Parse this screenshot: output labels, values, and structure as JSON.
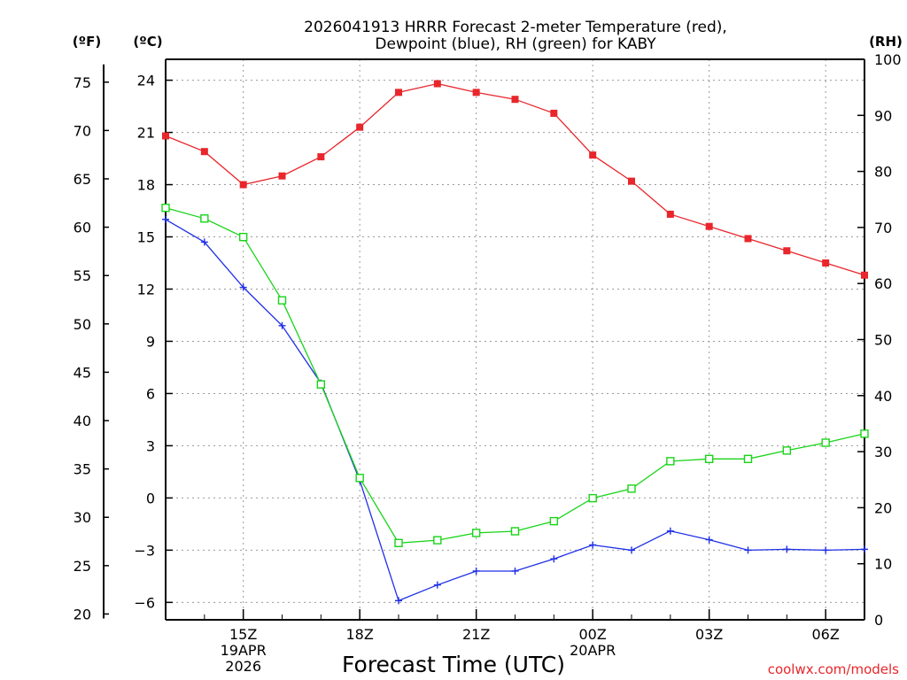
{
  "chart_data": {
    "type": "line",
    "title_line1": "2026041913 HRRR Forecast 2-meter Temperature (red),",
    "title_line2": "Dewpoint (blue), RH (green) for KABY",
    "xlabel": "Forecast Time (UTC)",
    "watermark": "coolwx.com/models",
    "x_hours": [
      0,
      1,
      2,
      3,
      4,
      5,
      6,
      7,
      8,
      9,
      10,
      11,
      12,
      13,
      14,
      15,
      16,
      17,
      18
    ],
    "xlim": [
      0,
      18
    ],
    "x_ticks": [
      {
        "hour": 2,
        "lines": [
          "15Z",
          "19APR",
          "2026"
        ]
      },
      {
        "hour": 5,
        "lines": [
          "18Z"
        ]
      },
      {
        "hour": 8,
        "lines": [
          "21Z"
        ]
      },
      {
        "hour": 11,
        "lines": [
          "00Z",
          "20APR"
        ]
      },
      {
        "hour": 14,
        "lines": [
          "03Z"
        ]
      },
      {
        "hour": 17,
        "lines": [
          "06Z"
        ]
      }
    ],
    "axis_f": {
      "unit": "(ºF)",
      "ticks": [
        20,
        25,
        30,
        35,
        40,
        45,
        50,
        55,
        60,
        65,
        70,
        75
      ]
    },
    "axis_c": {
      "unit": "(ºC)",
      "ylim": [
        -7,
        25.2
      ],
      "ticks": [
        "24",
        "21",
        "18",
        "15",
        "12",
        "9",
        "6",
        "3",
        "0",
        "−3",
        "−6"
      ],
      "tick_values": [
        24,
        21,
        18,
        15,
        12,
        9,
        6,
        3,
        0,
        -3,
        -6
      ]
    },
    "axis_rh": {
      "unit": "(RH)",
      "ylim": [
        0,
        100
      ],
      "ticks": [
        0,
        10,
        20,
        30,
        40,
        50,
        60,
        70,
        80,
        90,
        100
      ]
    },
    "series": [
      {
        "name": "Temperature",
        "unit": "C",
        "color": "#e8262b",
        "marker": "filled-square",
        "values": [
          20.8,
          19.9,
          18.0,
          18.5,
          19.6,
          21.3,
          23.3,
          23.8,
          23.3,
          22.9,
          22.1,
          19.7,
          18.2,
          16.3,
          15.6,
          14.9,
          14.2,
          13.5,
          12.8
        ]
      },
      {
        "name": "Dewpoint",
        "unit": "C",
        "color": "#1f2fe6",
        "marker": "plus",
        "values": [
          16.0,
          14.7,
          12.1,
          9.9,
          6.6,
          1.0,
          -5.9,
          -5.0,
          -4.2,
          -4.2,
          -3.5,
          -2.7,
          -3.0,
          -1.9,
          -2.4,
          -3.0,
          -2.95,
          -3.0,
          -2.95
        ]
      },
      {
        "name": "RH",
        "unit": "%",
        "color": "#18d418",
        "marker": "open-square",
        "values": [
          73.5,
          71.6,
          68.3,
          57.0,
          42.0,
          25.3,
          13.7,
          14.2,
          15.5,
          15.8,
          17.6,
          21.7,
          23.4,
          28.3,
          28.7,
          28.7,
          30.2,
          31.6,
          33.2
        ]
      }
    ]
  }
}
